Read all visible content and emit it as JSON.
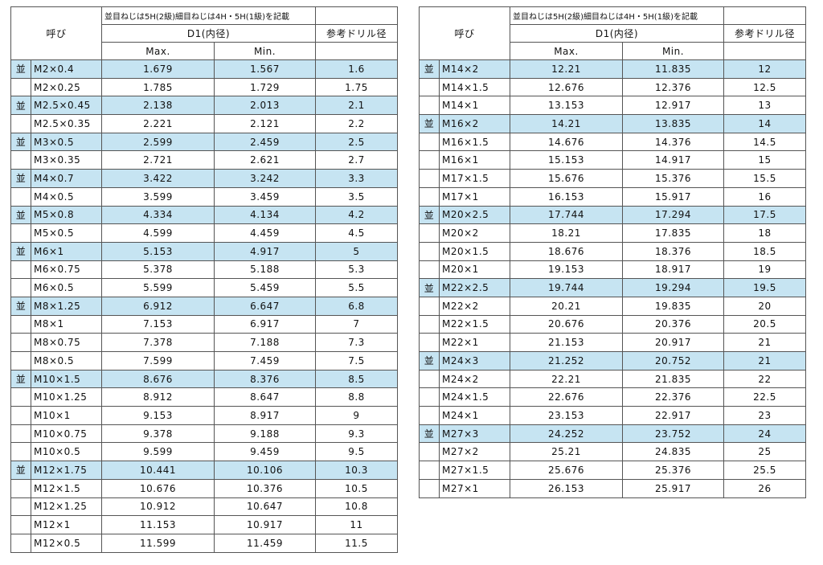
{
  "tables": [
    {
      "headers": {
        "name": "呼び",
        "note": "並目ねじは5H(2級)細目ねじは4H・5H(1級)を記載",
        "d1": "D1(内径)",
        "drill": "参考ドリル径",
        "max": "Max.",
        "min": "Min."
      },
      "rows": [
        {
          "mark": "並",
          "name": "M2×0.4",
          "max": 1.679,
          "min": 1.567,
          "drill": 1.6
        },
        {
          "name": "M2×0.25",
          "max": 1.785,
          "min": 1.729,
          "drill": 1.75
        },
        {
          "mark": "並",
          "name": "M2.5×0.45",
          "max": 2.138,
          "min": 2.013,
          "drill": 2.1
        },
        {
          "name": "M2.5×0.35",
          "max": 2.221,
          "min": 2.121,
          "drill": 2.2
        },
        {
          "mark": "並",
          "name": "M3×0.5",
          "max": 2.599,
          "min": 2.459,
          "drill": 2.5
        },
        {
          "name": "M3×0.35",
          "max": 2.721,
          "min": 2.621,
          "drill": 2.7
        },
        {
          "mark": "並",
          "name": "M4×0.7",
          "max": 3.422,
          "min": 3.242,
          "drill": 3.3
        },
        {
          "name": "M4×0.5",
          "max": 3.599,
          "min": 3.459,
          "drill": 3.5
        },
        {
          "mark": "並",
          "name": "M5×0.8",
          "max": 4.334,
          "min": 4.134,
          "drill": 4.2
        },
        {
          "name": "M5×0.5",
          "max": 4.599,
          "min": 4.459,
          "drill": 4.5
        },
        {
          "mark": "並",
          "name": "M6×1",
          "max": 5.153,
          "min": 4.917,
          "drill": 5
        },
        {
          "name": "M6×0.75",
          "max": 5.378,
          "min": 5.188,
          "drill": 5.3
        },
        {
          "name": "M6×0.5",
          "max": 5.599,
          "min": 5.459,
          "drill": 5.5
        },
        {
          "mark": "並",
          "name": "M8×1.25",
          "max": 6.912,
          "min": 6.647,
          "drill": 6.8
        },
        {
          "name": "M8×1",
          "max": 7.153,
          "min": 6.917,
          "drill": 7
        },
        {
          "name": "M8×0.75",
          "max": 7.378,
          "min": 7.188,
          "drill": 7.3
        },
        {
          "name": "M8×0.5",
          "max": 7.599,
          "min": 7.459,
          "drill": 7.5
        },
        {
          "mark": "並",
          "name": "M10×1.5",
          "max": 8.676,
          "min": 8.376,
          "drill": 8.5
        },
        {
          "name": "M10×1.25",
          "max": 8.912,
          "min": 8.647,
          "drill": 8.8
        },
        {
          "name": "M10×1",
          "max": 9.153,
          "min": 8.917,
          "drill": 9
        },
        {
          "name": "M10×0.75",
          "max": 9.378,
          "min": 9.188,
          "drill": 9.3
        },
        {
          "name": "M10×0.5",
          "max": 9.599,
          "min": 9.459,
          "drill": 9.5
        },
        {
          "mark": "並",
          "name": "M12×1.75",
          "max": 10.441,
          "min": 10.106,
          "drill": 10.3
        },
        {
          "name": "M12×1.5",
          "max": 10.676,
          "min": 10.376,
          "drill": 10.5
        },
        {
          "name": "M12×1.25",
          "max": 10.912,
          "min": 10.647,
          "drill": 10.8
        },
        {
          "name": "M12×1",
          "max": 11.153,
          "min": 10.917,
          "drill": 11
        },
        {
          "name": "M12×0.5",
          "max": 11.599,
          "min": 11.459,
          "drill": 11.5
        }
      ]
    },
    {
      "headers": {
        "name": "呼び",
        "note": "並目ねじは5H(2級)細目ねじは4H・5H(1級)を記載",
        "d1": "D1(内径)",
        "drill": "参考ドリル径",
        "max": "Max.",
        "min": "Min."
      },
      "rows": [
        {
          "mark": "並",
          "name": "M14×2",
          "max": 12.21,
          "min": 11.835,
          "drill": 12
        },
        {
          "name": "M14×1.5",
          "max": 12.676,
          "min": 12.376,
          "drill": 12.5
        },
        {
          "name": "M14×1",
          "max": 13.153,
          "min": 12.917,
          "drill": 13
        },
        {
          "mark": "並",
          "name": "M16×2",
          "max": 14.21,
          "min": 13.835,
          "drill": 14
        },
        {
          "name": "M16×1.5",
          "max": 14.676,
          "min": 14.376,
          "drill": 14.5
        },
        {
          "name": "M16×1",
          "max": 15.153,
          "min": 14.917,
          "drill": 15
        },
        {
          "name": "M17×1.5",
          "max": 15.676,
          "min": 15.376,
          "drill": 15.5
        },
        {
          "name": "M17×1",
          "max": 16.153,
          "min": 15.917,
          "drill": 16
        },
        {
          "mark": "並",
          "name": "M20×2.5",
          "max": 17.744,
          "min": 17.294,
          "drill": 17.5
        },
        {
          "name": "M20×2",
          "max": 18.21,
          "min": 17.835,
          "drill": 18
        },
        {
          "name": "M20×1.5",
          "max": 18.676,
          "min": 18.376,
          "drill": 18.5
        },
        {
          "name": "M20×1",
          "max": 19.153,
          "min": 18.917,
          "drill": 19
        },
        {
          "mark": "並",
          "name": "M22×2.5",
          "max": 19.744,
          "min": 19.294,
          "drill": 19.5
        },
        {
          "name": "M22×2",
          "max": 20.21,
          "min": 19.835,
          "drill": 20
        },
        {
          "name": "M22×1.5",
          "max": 20.676,
          "min": 20.376,
          "drill": 20.5
        },
        {
          "name": "M22×1",
          "max": 21.153,
          "min": 20.917,
          "drill": 21
        },
        {
          "mark": "並",
          "name": "M24×3",
          "max": 21.252,
          "min": 20.752,
          "drill": 21
        },
        {
          "name": "M24×2",
          "max": 22.21,
          "min": 21.835,
          "drill": 22
        },
        {
          "name": "M24×1.5",
          "max": 22.676,
          "min": 22.376,
          "drill": 22.5
        },
        {
          "name": "M24×1",
          "max": 23.153,
          "min": 22.917,
          "drill": 23
        },
        {
          "mark": "並",
          "name": "M27×3",
          "max": 24.252,
          "min": 23.752,
          "drill": 24
        },
        {
          "name": "M27×2",
          "max": 25.21,
          "min": 24.835,
          "drill": 25
        },
        {
          "name": "M27×1.5",
          "max": 25.676,
          "min": 25.376,
          "drill": 25.5
        },
        {
          "name": "M27×1",
          "max": 26.153,
          "min": 25.917,
          "drill": 26
        }
      ]
    }
  ]
}
